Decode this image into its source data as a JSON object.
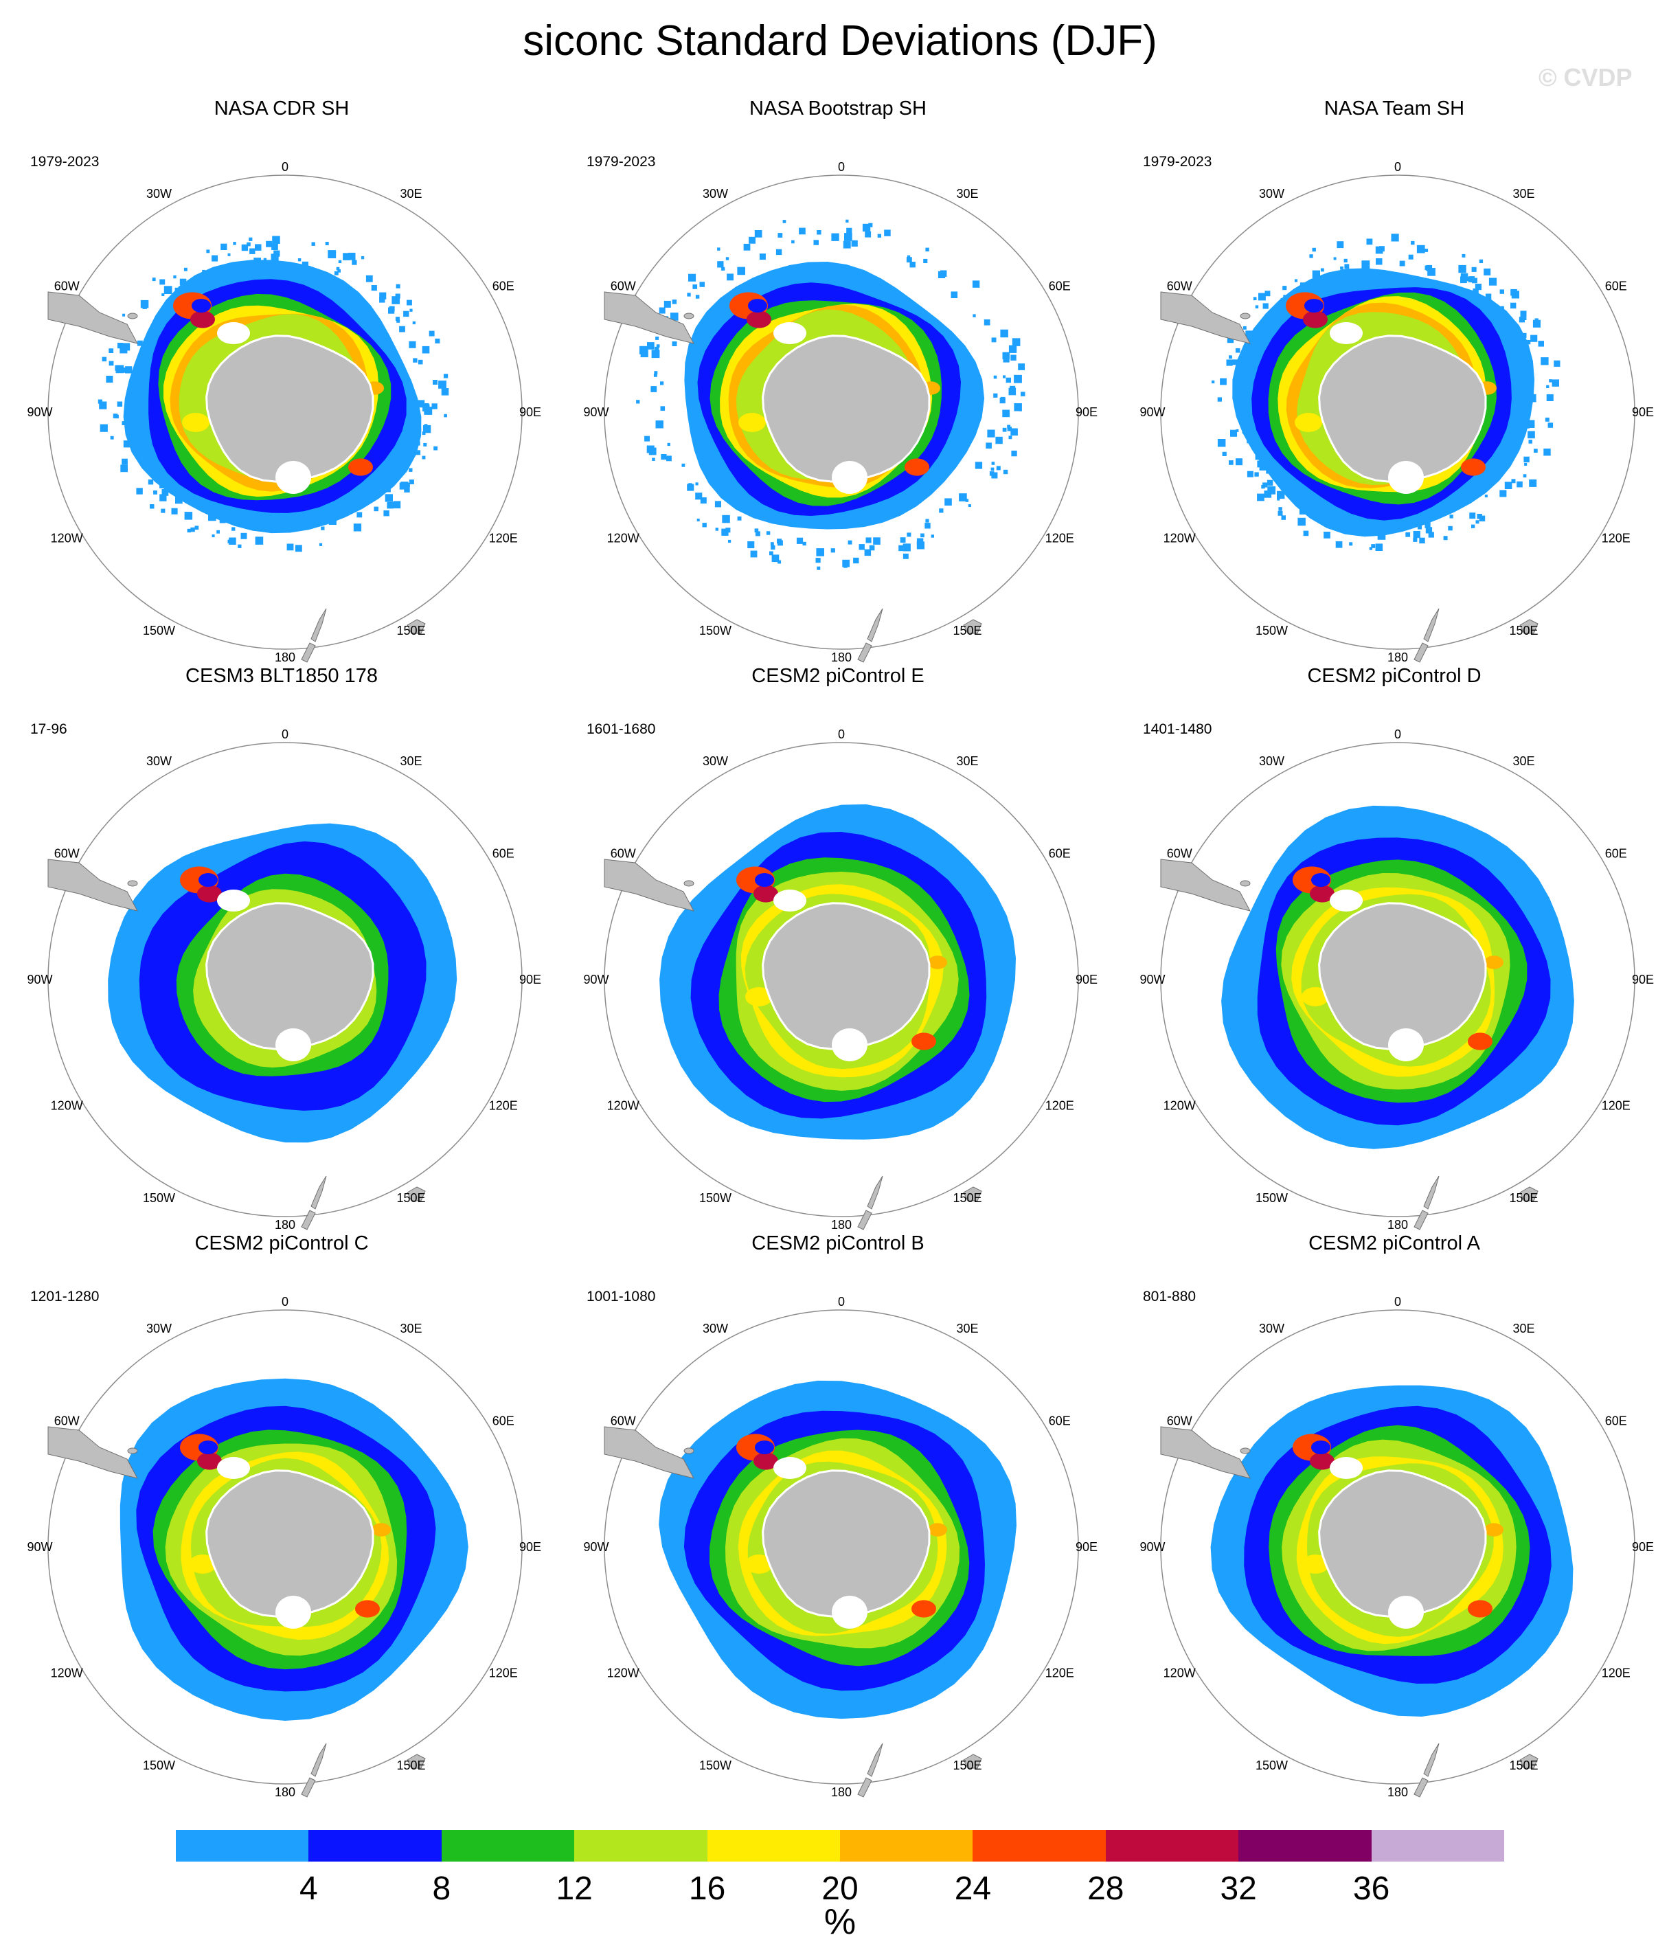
{
  "title": "siconc Standard Deviations (DJF)",
  "watermark": "© CVDP",
  "longitude_labels": [
    "0",
    "30E",
    "60E",
    "90E",
    "120E",
    "150E",
    "180",
    "150W",
    "120W",
    "90W",
    "60W",
    "30W"
  ],
  "colors": {
    "land": "#bebebe",
    "ring": "#8c8c8c",
    "levels": [
      "#1ea0ff",
      "#0a14ff",
      "#1ebe1e",
      "#b4e61e",
      "#ffec00",
      "#ffb400",
      "#ff4600",
      "#be0a3c",
      "#800064",
      "#c8aad7"
    ]
  },
  "panels": [
    {
      "title": "NASA CDR SH",
      "years": "1979-2023",
      "pattern": "obs",
      "extent": "ragged"
    },
    {
      "title": "NASA Bootstrap SH",
      "years": "1979-2023",
      "pattern": "obs",
      "extent": "speckled"
    },
    {
      "title": "NASA Team SH",
      "years": "1979-2023",
      "pattern": "obs",
      "extent": "ragged"
    },
    {
      "title": "CESM3 BLT1850 178",
      "years": "17-96",
      "pattern": "model-low"
    },
    {
      "title": "CESM2 piControl E",
      "years": "1601-1680",
      "pattern": "model"
    },
    {
      "title": "CESM2 piControl D",
      "years": "1401-1480",
      "pattern": "model"
    },
    {
      "title": "CESM2 piControl C",
      "years": "1201-1280",
      "pattern": "model"
    },
    {
      "title": "CESM2 piControl B",
      "years": "1001-1080",
      "pattern": "model"
    },
    {
      "title": "CESM2 piControl A",
      "years": "801-880",
      "pattern": "model"
    }
  ],
  "colorbar": {
    "ticks": [
      "4",
      "8",
      "12",
      "16",
      "20",
      "24",
      "28",
      "32",
      "36"
    ],
    "units": "%"
  }
}
